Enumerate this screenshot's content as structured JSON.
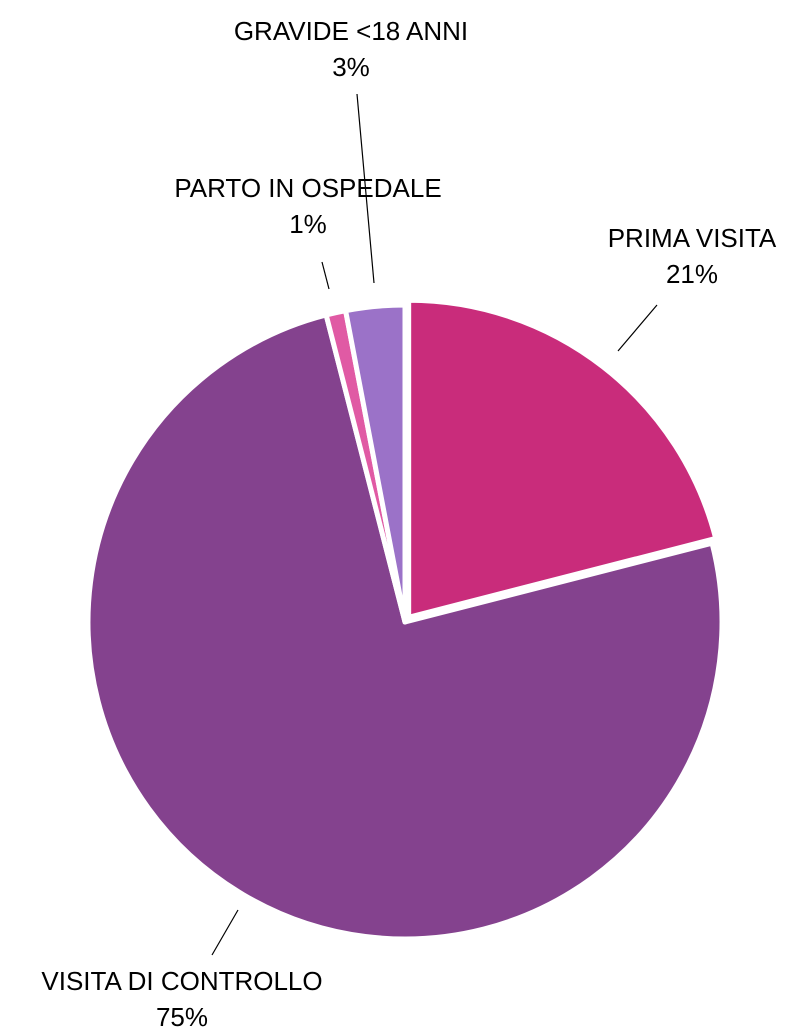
{
  "chart_data": {
    "type": "pie",
    "title": "",
    "slices": [
      {
        "label": "PRIMA VISITA",
        "value": 21,
        "value_label": "21%",
        "color": "#c92c7b"
      },
      {
        "label": "VISITA DI CONTROLLO",
        "value": 75,
        "value_label": "75%",
        "color": "#84428e"
      },
      {
        "label": "PARTO IN OSPEDALE",
        "value": 1,
        "value_label": "1%",
        "color": "#e05aa4"
      },
      {
        "label": "GRAVIDE <18 ANNI",
        "value": 3,
        "value_label": "3%",
        "color": "#9b72c8"
      }
    ],
    "start": "12 o'clock",
    "direction": "clockwise",
    "slice_separator_color": "#ffffff",
    "leader_line_color": "#000000",
    "legend": "none"
  }
}
